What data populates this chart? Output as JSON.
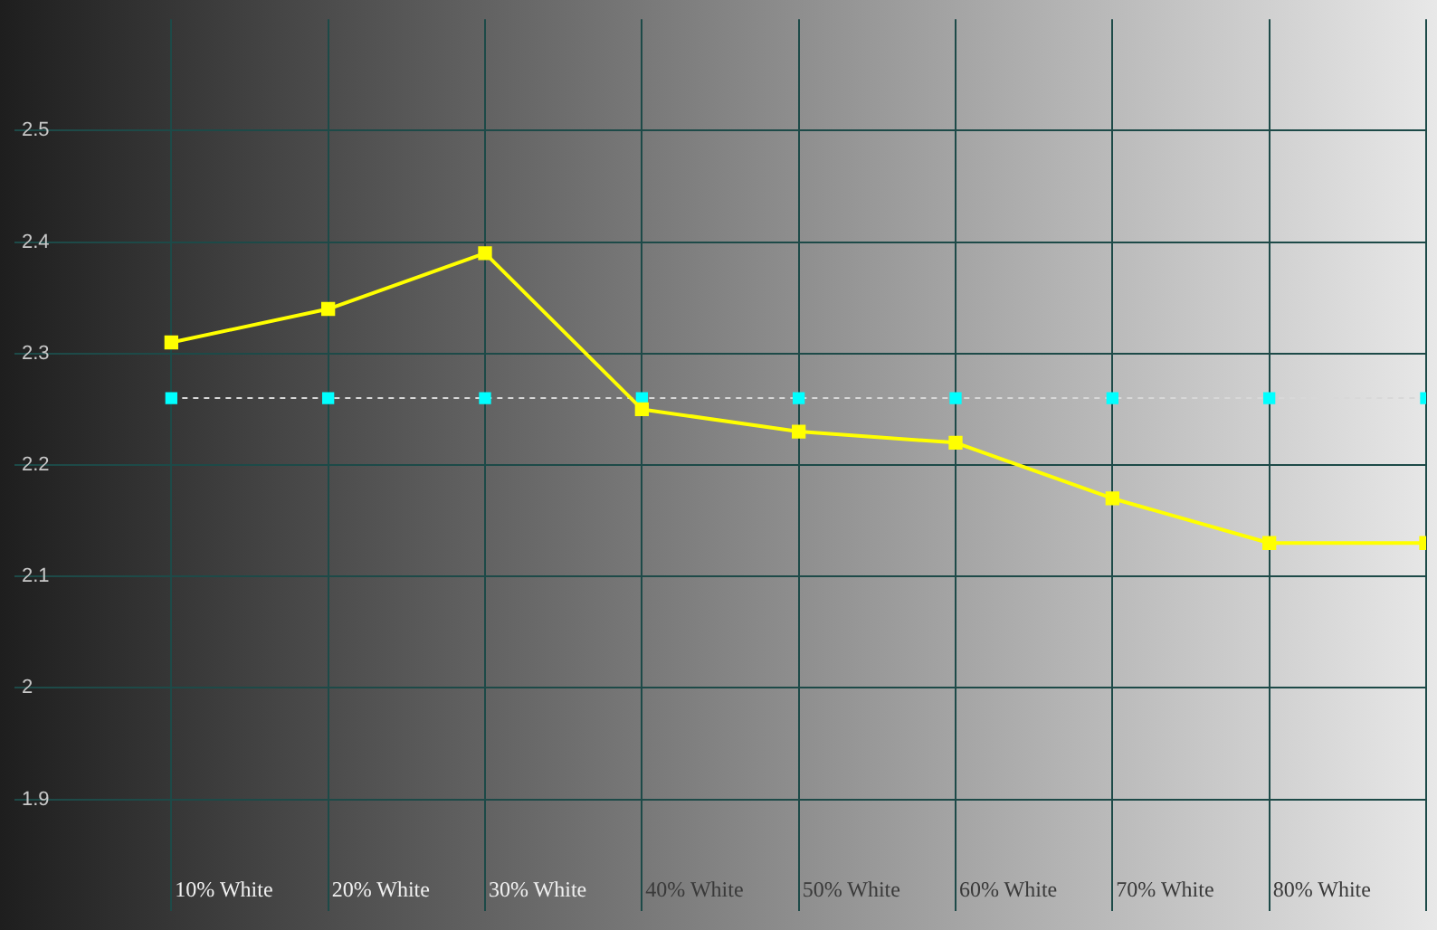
{
  "chart_data": {
    "type": "line",
    "categories": [
      "10% White",
      "20% White",
      "30% White",
      "40% White",
      "50% White",
      "60% White",
      "70% White",
      "80% White",
      null
    ],
    "series": [
      {
        "color": "#ffff00",
        "values": [
          2.31,
          2.34,
          2.39,
          2.25,
          2.23,
          2.22,
          2.17,
          2.13,
          2.13
        ],
        "line_style": "solid"
      },
      {
        "color": "#00ffff",
        "values": [
          2.26,
          2.26,
          2.26,
          2.26,
          2.26,
          2.26,
          2.26,
          2.26,
          2.26
        ],
        "line_style": "dashed"
      }
    ],
    "ylim": [
      1.8,
      2.6
    ],
    "yticks": [
      1.9,
      2,
      2.1,
      2.2,
      2.3,
      2.4,
      2.5
    ],
    "grid": true,
    "legend": false,
    "marker": "square"
  }
}
